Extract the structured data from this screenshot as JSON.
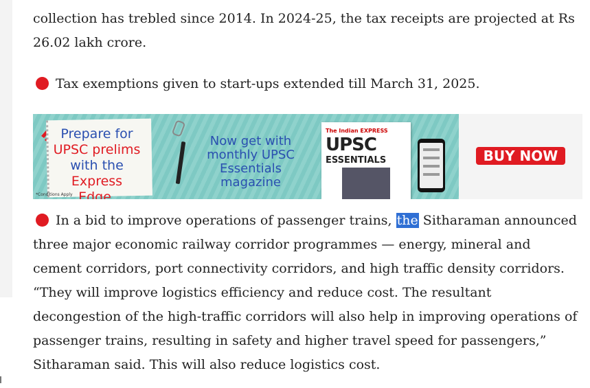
{
  "article": {
    "para_top_line1": "collection has trebled since 2014. In 2024-25, the tax receipts are projected at Rs",
    "para_top_line2": "26.02 lakh crore.",
    "bullet1": "Tax exemptions given to start-ups extended till March 31, 2025.",
    "bullet2_before": "In a bid to improve operations of passenger trains, ",
    "bullet2_highlight": "the",
    "bullet2_after": " Sitharaman announced three major economic railway corridor programmes — energy, mineral and cement corridors, port connectivity corridors, and  high traffic density corridors. “They will improve logistics efficiency and reduce cost. The resultant decongestion of the high-traffic corridors will also help in improving operations of passenger trains, resulting in safety and higher travel speed for passengers,” Sitharaman said. This will also reduce logistics cost."
  },
  "ad": {
    "note_line1": "Prepare for",
    "note_line2": "UPSC prelims",
    "note_line3": "with the",
    "note_line4": "Express Edge.",
    "conditions": "*Conditions Apply",
    "mid_line1": "Now get with",
    "mid_line2": "monthly UPSC",
    "mid_line3": "Essentials magazine",
    "mag_brand": "The Indian EXPRESS",
    "mag_title": "UPSC",
    "mag_subtitle": "ESSENTIALS",
    "buy_now": "BUY NOW"
  },
  "colors": {
    "bullet": "#e01b22",
    "highlight": "#2f6fd4",
    "ad_blue": "#2a4fb0",
    "button": "#e01b22"
  }
}
